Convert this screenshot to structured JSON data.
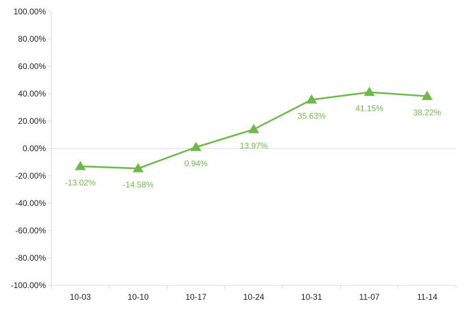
{
  "chart_data": {
    "type": "line",
    "categories": [
      "10-03",
      "10-10",
      "10-17",
      "10-24",
      "10-31",
      "11-07",
      "11-14"
    ],
    "series": [
      {
        "values": [
          -13.02,
          -14.58,
          0.94,
          13.97,
          35.63,
          41.15,
          38.22
        ],
        "labels": [
          "-13.02%",
          "-14.58%",
          "0.94%",
          "13.97%",
          "35.63%",
          "41.15%",
          "38.22%"
        ],
        "color": "#70b84a",
        "marker": "triangle"
      }
    ],
    "y_ticks": [
      "100.00%",
      "80.00%",
      "60.00%",
      "40.00%",
      "20.00%",
      "0.00%",
      "-20.00%",
      "-40.00%",
      "-60.00%",
      "-80.00%",
      "-100.00%"
    ],
    "ylim": [
      -100,
      100
    ],
    "y_step": 20,
    "title": "",
    "xlabel": "",
    "ylabel": "",
    "grid": false,
    "legend": "none",
    "axis_color": "#d9d9d9"
  }
}
